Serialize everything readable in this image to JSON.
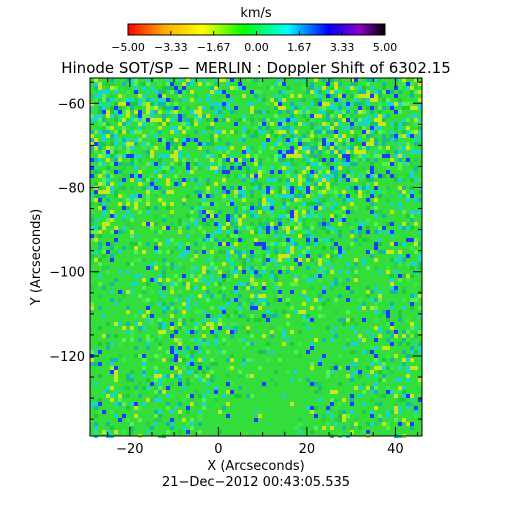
{
  "colorbar": {
    "unit": "km/s",
    "min": -5.0,
    "max": 5.0,
    "ticks": [
      "−5.00",
      "−3.33",
      "−1.67",
      "0.00",
      "1.67",
      "3.33",
      "5.00"
    ],
    "colors": [
      "#ff0000",
      "#ffaa00",
      "#ffff00",
      "#00ff00",
      "#00ffff",
      "#0000ff",
      "#8a00c8",
      "#000000"
    ]
  },
  "title": "Hinode SOT/SP − MERLIN : Doppler Shift of 6302.15",
  "x_axis": {
    "label": "X (Arcseconds)",
    "range": [
      -29,
      46
    ],
    "ticks": [
      {
        "value": -20,
        "label": "−20"
      },
      {
        "value": 0,
        "label": "0"
      },
      {
        "value": 20,
        "label": "20"
      },
      {
        "value": 40,
        "label": "40"
      }
    ]
  },
  "y_axis": {
    "label": "Y (Arcseconds)",
    "range": [
      -139,
      -54
    ],
    "ticks": [
      {
        "value": -60,
        "label": "−60"
      },
      {
        "value": -80,
        "label": "−80"
      },
      {
        "value": -100,
        "label": "−100"
      },
      {
        "value": -120,
        "label": "−120"
      }
    ]
  },
  "timestamp": "21−Dec−2012 00:43:05.535",
  "image": {
    "description_colors": {
      "background": "#2ee03c",
      "speckle_blue": "#1b3cff",
      "speckle_cyan": "#1ad6c8",
      "speckle_yellow": "#c8e81c"
    }
  }
}
